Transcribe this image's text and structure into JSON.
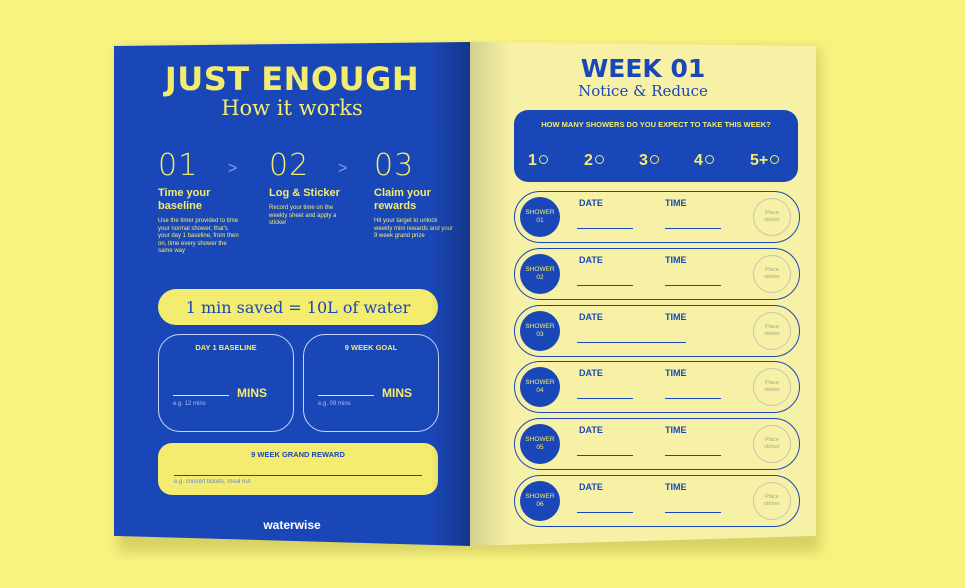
{
  "left": {
    "title": "JUST ENOUGH",
    "subtitle": "How it works",
    "steps": [
      {
        "num": "01",
        "title": "Time your baseline",
        "desc": "Use the timer provided to time your normal shower, that's your day 1 baseline, from then on, time every shower the same way"
      },
      {
        "num": "02",
        "title": "Log & Sticker",
        "desc": "Record your time on the weekly sheet and apply a sticker"
      },
      {
        "num": "03",
        "title": "Claim your rewards",
        "desc": "Hit your target to unlock weekly mini rewards and your 9 week grand prize"
      }
    ],
    "chevron": ">",
    "saved": "1 min saved = 10L of water",
    "baseline": {
      "label": "DAY 1 BASELINE",
      "unit": "MINS",
      "example": "e.g. 12 mins"
    },
    "goal": {
      "label": "9 WEEK GOAL",
      "unit": "MINS",
      "example": "e.g. 09 mins"
    },
    "reward": {
      "label": "9 WEEK GRAND REWARD",
      "example": "e.g. concert tickets, meal out"
    },
    "logo": "waterwise"
  },
  "right": {
    "title": "WEEK 01",
    "subtitle": "Notice & Reduce",
    "question": "HOW MANY SHOWERS DO YOU EXPECT TO TAKE THIS WEEK?",
    "options": [
      "1",
      "2",
      "3",
      "4",
      "5+"
    ],
    "date_label": "DATE",
    "time_label": "TIME",
    "sticker_label": "Place sticker",
    "showers": [
      {
        "label": "SHOWER",
        "num": "01"
      },
      {
        "label": "SHOWER",
        "num": "02"
      },
      {
        "label": "SHOWER",
        "num": "03"
      },
      {
        "label": "SHOWER",
        "num": "04"
      },
      {
        "label": "SHOWER",
        "num": "05"
      },
      {
        "label": "SHOWER",
        "num": "06"
      }
    ]
  },
  "colors": {
    "background": "#f8f27f",
    "blue": "#1a47b8",
    "yellow": "#f3ec6e",
    "page": "#f6f1a6"
  }
}
